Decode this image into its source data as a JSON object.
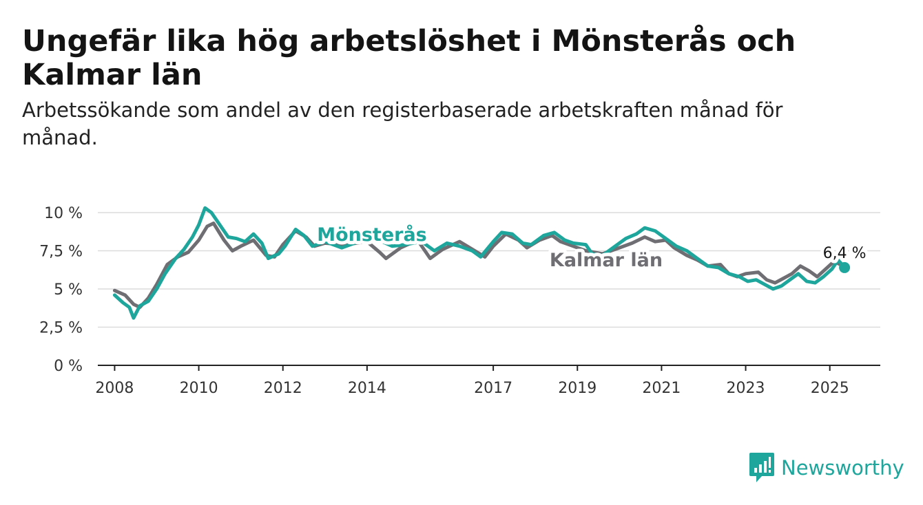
{
  "title": "Ungefär lika hög arbetslöshet i Mönsterås och Kalmar län",
  "subtitle": "Arbetssökande som andel av den registerbaserade arbetskraften månad för månad.",
  "brand": {
    "name": "Newsworthy",
    "color": "#1ea69c",
    "icon": "bar-chart-logo-icon"
  },
  "chart_data": {
    "type": "line",
    "ylim": [
      0,
      10.5
    ],
    "xlim": [
      2007.6,
      2026.2
    ],
    "y_ticks": [
      0,
      2.5,
      5,
      7.5,
      10
    ],
    "y_tick_labels": [
      "0 %",
      "2,5 %",
      "5 %",
      "7,5 %",
      "10 %"
    ],
    "x_ticks": [
      2008,
      2010,
      2012,
      2014,
      2017,
      2019,
      2021,
      2023,
      2025
    ],
    "x_tick_labels": [
      "2008",
      "2010",
      "2012",
      "2014",
      "2017",
      "2019",
      "2021",
      "2023",
      "2025"
    ],
    "grid": true,
    "series": [
      {
        "name": "Kalmar län",
        "color": "#6e6e73",
        "points": [
          [
            2008.0,
            4.9
          ],
          [
            2008.25,
            4.6
          ],
          [
            2008.45,
            4.0
          ],
          [
            2008.6,
            3.8
          ],
          [
            2008.8,
            4.4
          ],
          [
            2009.0,
            5.3
          ],
          [
            2009.25,
            6.6
          ],
          [
            2009.5,
            7.1
          ],
          [
            2009.75,
            7.4
          ],
          [
            2010.0,
            8.2
          ],
          [
            2010.2,
            9.1
          ],
          [
            2010.35,
            9.3
          ],
          [
            2010.6,
            8.2
          ],
          [
            2010.8,
            7.5
          ],
          [
            2011.0,
            7.8
          ],
          [
            2011.3,
            8.2
          ],
          [
            2011.6,
            7.2
          ],
          [
            2011.8,
            7.1
          ],
          [
            2012.0,
            7.9
          ],
          [
            2012.3,
            8.8
          ],
          [
            2012.55,
            8.4
          ],
          [
            2012.75,
            7.8
          ],
          [
            2013.0,
            8.0
          ],
          [
            2013.5,
            7.9
          ],
          [
            2014.0,
            8.1
          ],
          [
            2014.3,
            7.4
          ],
          [
            2014.45,
            7.0
          ],
          [
            2014.8,
            7.7
          ],
          [
            2015.2,
            8.2
          ],
          [
            2015.5,
            7.0
          ],
          [
            2015.8,
            7.6
          ],
          [
            2016.2,
            8.1
          ],
          [
            2016.5,
            7.6
          ],
          [
            2016.8,
            7.1
          ],
          [
            2017.0,
            7.8
          ],
          [
            2017.3,
            8.6
          ],
          [
            2017.6,
            8.2
          ],
          [
            2017.8,
            7.7
          ],
          [
            2018.1,
            8.2
          ],
          [
            2018.4,
            8.5
          ],
          [
            2018.6,
            8.1
          ],
          [
            2018.9,
            7.8
          ],
          [
            2019.2,
            7.5
          ],
          [
            2019.6,
            7.3
          ],
          [
            2020.0,
            7.7
          ],
          [
            2020.3,
            8.0
          ],
          [
            2020.6,
            8.4
          ],
          [
            2020.85,
            8.1
          ],
          [
            2021.1,
            8.2
          ],
          [
            2021.3,
            7.7
          ],
          [
            2021.6,
            7.2
          ],
          [
            2021.85,
            6.9
          ],
          [
            2022.1,
            6.5
          ],
          [
            2022.4,
            6.6
          ],
          [
            2022.6,
            6.0
          ],
          [
            2022.8,
            5.8
          ],
          [
            2023.0,
            6.0
          ],
          [
            2023.3,
            6.1
          ],
          [
            2023.5,
            5.6
          ],
          [
            2023.7,
            5.4
          ],
          [
            2023.9,
            5.7
          ],
          [
            2024.1,
            6.0
          ],
          [
            2024.3,
            6.5
          ],
          [
            2024.5,
            6.2
          ],
          [
            2024.7,
            5.8
          ],
          [
            2024.9,
            6.3
          ],
          [
            2025.1,
            6.8
          ],
          [
            2025.25,
            6.6
          ]
        ]
      },
      {
        "name": "Mönsterås",
        "color": "#1ea69c",
        "points": [
          [
            2008.0,
            4.6
          ],
          [
            2008.2,
            4.1
          ],
          [
            2008.35,
            3.8
          ],
          [
            2008.45,
            3.1
          ],
          [
            2008.6,
            3.9
          ],
          [
            2008.8,
            4.2
          ],
          [
            2009.0,
            5.0
          ],
          [
            2009.2,
            6.0
          ],
          [
            2009.45,
            7.0
          ],
          [
            2009.65,
            7.6
          ],
          [
            2009.85,
            8.4
          ],
          [
            2010.0,
            9.2
          ],
          [
            2010.15,
            10.3
          ],
          [
            2010.3,
            10.0
          ],
          [
            2010.5,
            9.2
          ],
          [
            2010.7,
            8.4
          ],
          [
            2010.9,
            8.3
          ],
          [
            2011.1,
            8.1
          ],
          [
            2011.3,
            8.6
          ],
          [
            2011.5,
            8.0
          ],
          [
            2011.65,
            7.0
          ],
          [
            2011.9,
            7.3
          ],
          [
            2012.05,
            7.8
          ],
          [
            2012.3,
            8.9
          ],
          [
            2012.5,
            8.5
          ],
          [
            2012.7,
            7.8
          ],
          [
            2013.0,
            8.1
          ],
          [
            2013.4,
            7.7
          ],
          [
            2013.8,
            8.1
          ],
          [
            2014.2,
            8.3
          ],
          [
            2014.6,
            7.8
          ],
          [
            2014.9,
            7.9
          ],
          [
            2015.3,
            8.1
          ],
          [
            2015.6,
            7.5
          ],
          [
            2015.9,
            8.0
          ],
          [
            2016.2,
            7.8
          ],
          [
            2016.5,
            7.5
          ],
          [
            2016.7,
            7.1
          ],
          [
            2017.0,
            8.1
          ],
          [
            2017.2,
            8.7
          ],
          [
            2017.45,
            8.6
          ],
          [
            2017.7,
            8.0
          ],
          [
            2017.9,
            7.9
          ],
          [
            2018.2,
            8.5
          ],
          [
            2018.45,
            8.7
          ],
          [
            2018.7,
            8.2
          ],
          [
            2018.9,
            8.0
          ],
          [
            2019.2,
            7.9
          ],
          [
            2019.35,
            7.3
          ],
          [
            2019.6,
            7.2
          ],
          [
            2019.9,
            7.8
          ],
          [
            2020.15,
            8.3
          ],
          [
            2020.4,
            8.6
          ],
          [
            2020.6,
            9.0
          ],
          [
            2020.85,
            8.8
          ],
          [
            2021.1,
            8.3
          ],
          [
            2021.35,
            7.8
          ],
          [
            2021.6,
            7.5
          ],
          [
            2021.85,
            7.0
          ],
          [
            2022.1,
            6.5
          ],
          [
            2022.35,
            6.4
          ],
          [
            2022.6,
            6.0
          ],
          [
            2022.85,
            5.8
          ],
          [
            2023.05,
            5.5
          ],
          [
            2023.25,
            5.6
          ],
          [
            2023.45,
            5.3
          ],
          [
            2023.65,
            5.0
          ],
          [
            2023.85,
            5.2
          ],
          [
            2024.05,
            5.6
          ],
          [
            2024.25,
            6.0
          ],
          [
            2024.45,
            5.5
          ],
          [
            2024.65,
            5.4
          ],
          [
            2024.85,
            5.8
          ],
          [
            2025.05,
            6.3
          ],
          [
            2025.2,
            6.9
          ],
          [
            2025.35,
            6.4
          ]
        ]
      }
    ],
    "annotations": [
      {
        "text": "Mönsterås",
        "series": "Mönsterås"
      },
      {
        "text": "Kalmar län",
        "series": "Kalmar län"
      },
      {
        "text": "6,4 %",
        "series": "Mönsterås",
        "x": 2025.35,
        "y": 6.4
      }
    ]
  }
}
